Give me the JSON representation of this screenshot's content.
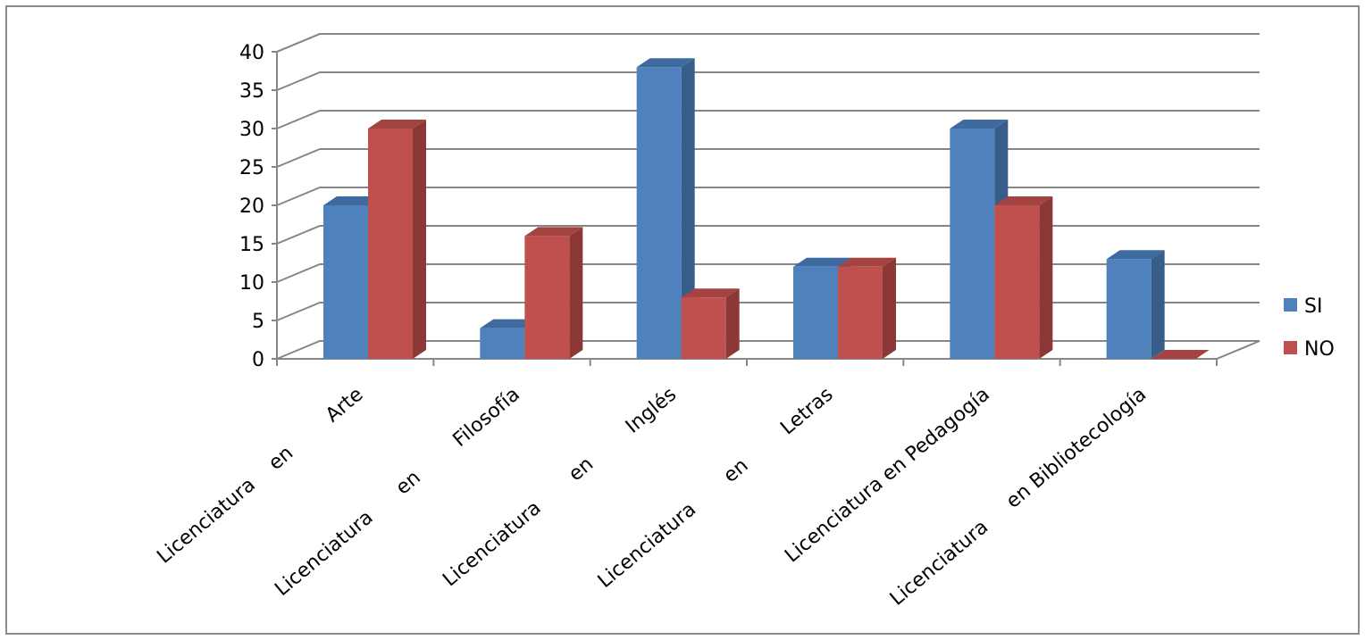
{
  "chart_data": {
    "type": "bar",
    "three_d": true,
    "categories": [
      "Licenciatura    en        Arte",
      "Licenciatura      en        Filosofía",
      "Licenciatura       en        Inglés",
      "Licenciatura       en        Letras",
      "Licenciatura en Pedagogía",
      "Licenciatura     en Bibliotecología"
    ],
    "series": [
      {
        "name": "SI",
        "values": [
          20,
          4,
          38,
          12,
          30,
          13
        ],
        "color": "#4F81BD",
        "side_color": "#385D8A",
        "top_color": "#3E6AA0"
      },
      {
        "name": "NO",
        "values": [
          30,
          16,
          8,
          12,
          20,
          0
        ],
        "color": "#C0504D",
        "side_color": "#8C3836",
        "top_color": "#A44441"
      }
    ],
    "yticks": [
      "0",
      "5",
      "10",
      "15",
      "20",
      "25",
      "30",
      "35",
      "40"
    ],
    "ylim": [
      0,
      40
    ],
    "grid": true,
    "legend_position": "right",
    "title": "",
    "xlabel": "",
    "ylabel": ""
  }
}
